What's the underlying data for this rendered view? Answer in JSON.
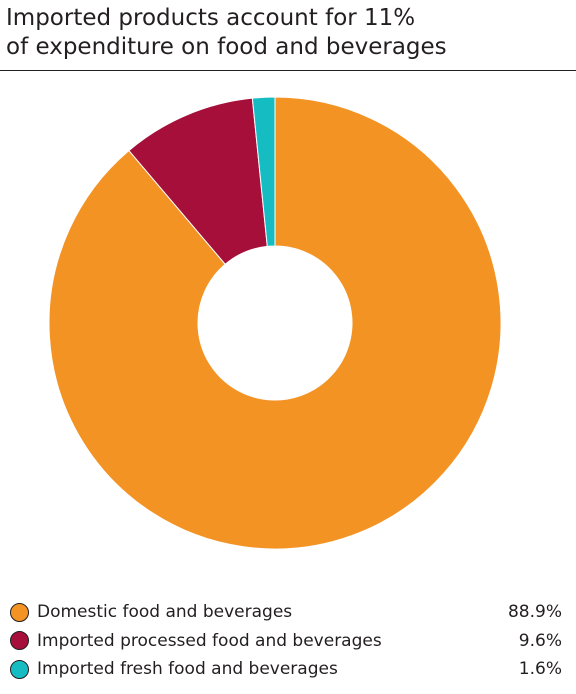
{
  "chart_data": {
    "type": "pie",
    "title": "Imported products account for 11% of expenditure on food and beverages",
    "title_lines": [
      "Imported products account for 11%",
      "of expenditure on food and beverages"
    ],
    "donut": true,
    "legend_position": "bottom",
    "slices": [
      {
        "name": "Domestic food and beverages",
        "value": 88.9,
        "label": "88.9%",
        "color": "#f39324"
      },
      {
        "name": "Imported processed food and beverages",
        "value": 9.6,
        "label": "9.6%",
        "color": "#a50f3a"
      },
      {
        "name": "Imported fresh food and beverages",
        "value": 1.6,
        "label": "1.6%",
        "color": "#15bdc3"
      }
    ]
  }
}
